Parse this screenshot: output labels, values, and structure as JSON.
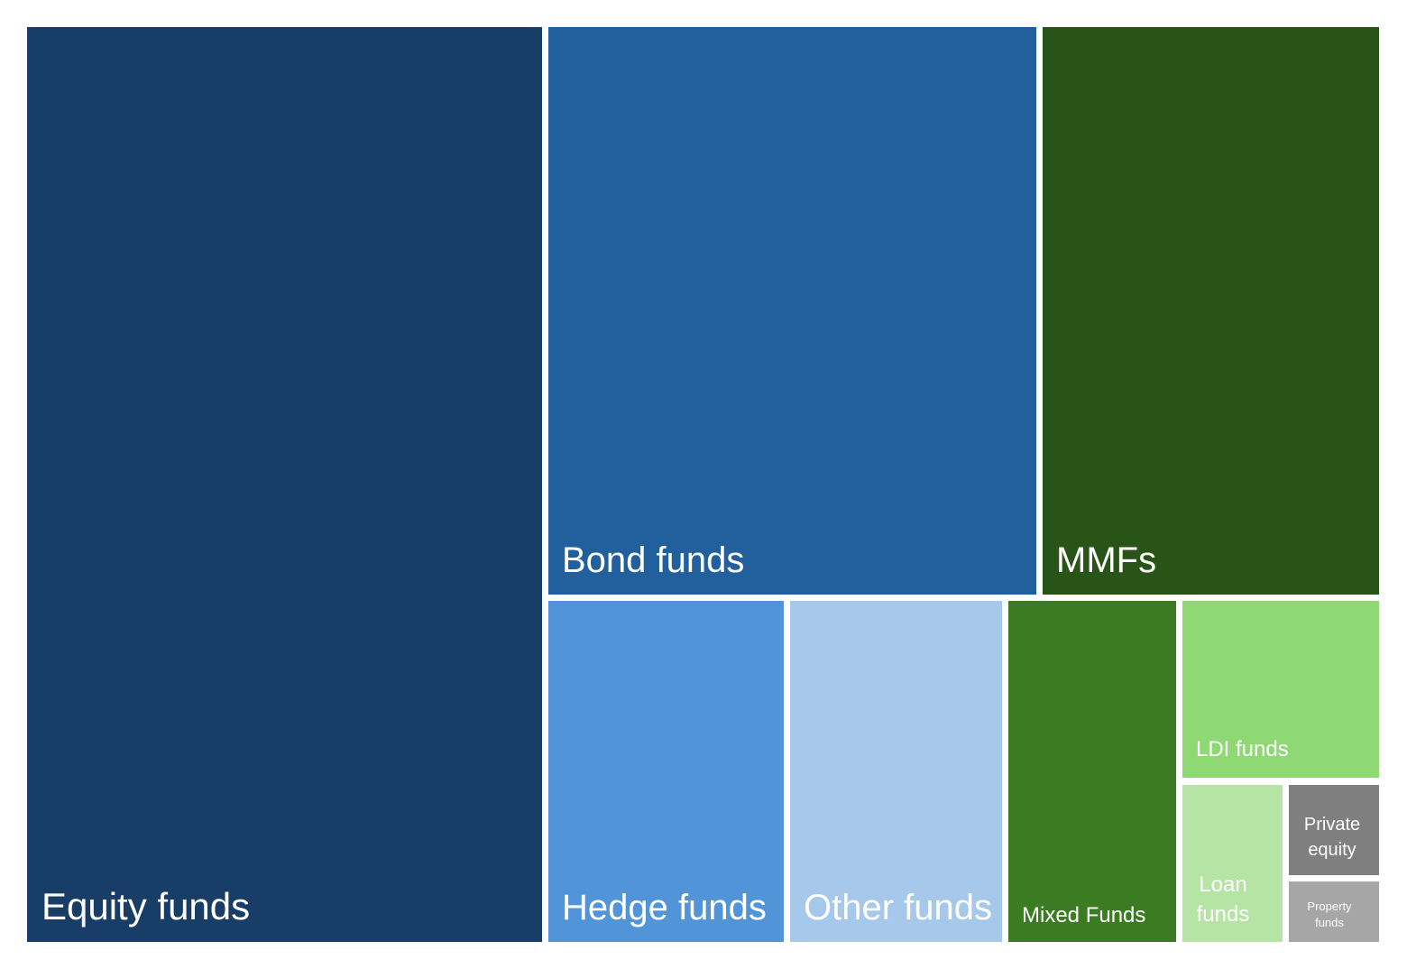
{
  "chart_data": {
    "type": "treemap",
    "title": "",
    "items": [
      {
        "key": "equity",
        "name": "Equity funds",
        "color": "#183d66"
      },
      {
        "key": "bond",
        "name": "Bond funds",
        "color": "#22609d"
      },
      {
        "key": "mmf",
        "name": "MMFs",
        "color": "#285417"
      },
      {
        "key": "hedge",
        "name": "Hedge funds",
        "color": "#5195d8"
      },
      {
        "key": "other",
        "name": "Other funds",
        "color": "#a6c8eb"
      },
      {
        "key": "mixed",
        "name": "Mixed Funds",
        "color": "#3b7b22"
      },
      {
        "key": "ldi",
        "name": "LDI funds",
        "color": "#8fd975"
      },
      {
        "key": "loan",
        "name": "Loan funds",
        "color": "#b6e4a5"
      },
      {
        "key": "private",
        "name": "Private equity",
        "color": "#7f7f7f"
      },
      {
        "key": "property",
        "name": "Property funds",
        "color": "#a6a6a6"
      }
    ]
  }
}
